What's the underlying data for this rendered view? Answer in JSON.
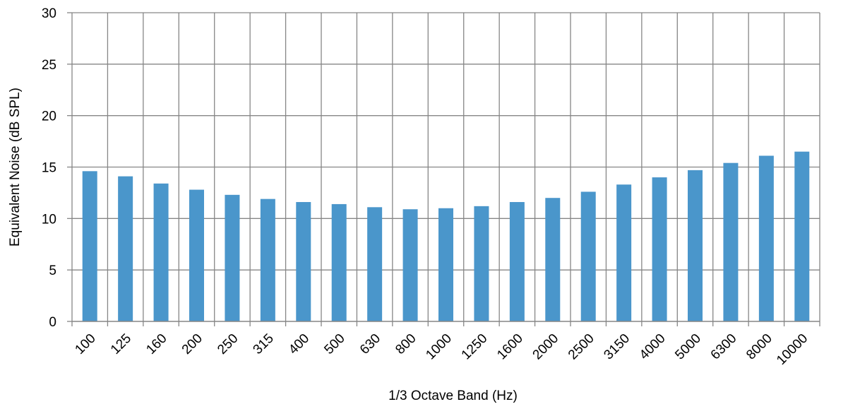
{
  "chart_data": {
    "type": "bar",
    "title": "",
    "xlabel": "1/3 Octave Band (Hz)",
    "ylabel": "Equivalent Noise (dB SPL)",
    "ylim": [
      0,
      30
    ],
    "yticks": [
      0,
      5,
      10,
      15,
      20,
      25,
      30
    ],
    "grid": true,
    "categories": [
      "100",
      "125",
      "160",
      "200",
      "250",
      "315",
      "400",
      "500",
      "630",
      "800",
      "1000",
      "1250",
      "1600",
      "2000",
      "2500",
      "3150",
      "4000",
      "5000",
      "6300",
      "8000",
      "10000"
    ],
    "values": [
      14.6,
      14.1,
      13.4,
      12.8,
      12.3,
      11.9,
      11.6,
      11.4,
      11.1,
      10.9,
      11.0,
      11.2,
      11.6,
      12.0,
      12.6,
      13.3,
      14.0,
      14.7,
      15.4,
      16.1,
      16.5
    ],
    "bar_color": "#4A96CB",
    "grid_color": "#868686"
  }
}
